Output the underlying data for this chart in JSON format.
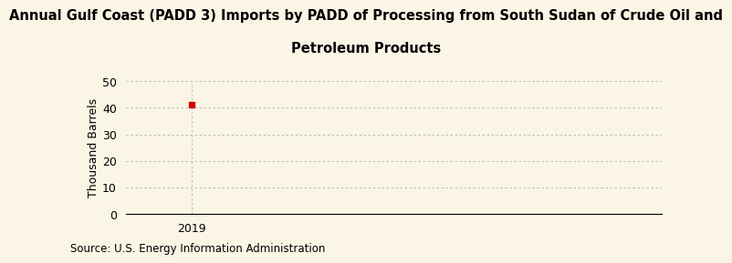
{
  "title_line1": "Annual Gulf Coast (PADD 3) Imports by PADD of Processing from South Sudan of Crude Oil and",
  "title_line2": "Petroleum Products",
  "ylabel": "Thousand Barrels",
  "source": "Source: U.S. Energy Information Administration",
  "x_values": [
    2019
  ],
  "y_values": [
    41
  ],
  "xlim": [
    2018.3,
    2024.0
  ],
  "ylim": [
    0,
    50
  ],
  "yticks": [
    0,
    10,
    20,
    30,
    40,
    50
  ],
  "xticks": [
    2019
  ],
  "marker_color": "#cc0000",
  "marker_style": "s",
  "marker_size": 4,
  "background_color": "#faf5e4",
  "grid_color": "#b0b0b0",
  "title_fontsize": 10.5,
  "axis_fontsize": 9,
  "source_fontsize": 8.5
}
